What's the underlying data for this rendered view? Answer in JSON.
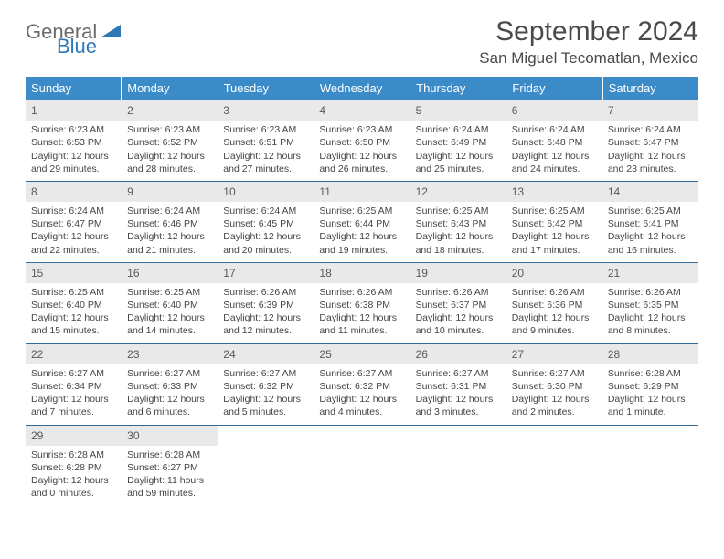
{
  "logo": {
    "word1": "General",
    "word2": "Blue",
    "color_gray": "#6b6b6b",
    "color_blue": "#2f78b7"
  },
  "title": "September 2024",
  "location": "San Miguel Tecomatlan, Mexico",
  "colors": {
    "header_bg": "#3b8bc9",
    "header_text": "#ffffff",
    "row_border": "#2f6a9a",
    "daynum_bg": "#e9e9e9",
    "body_text": "#444444"
  },
  "fonts": {
    "title_pt": 30,
    "location_pt": 17,
    "weekday_pt": 13,
    "daynum_pt": 12,
    "body_pt": 10.5
  },
  "weekdays": [
    "Sunday",
    "Monday",
    "Tuesday",
    "Wednesday",
    "Thursday",
    "Friday",
    "Saturday"
  ],
  "weeks": [
    [
      {
        "n": "1",
        "sr": "Sunrise: 6:23 AM",
        "ss": "Sunset: 6:53 PM",
        "d1": "Daylight: 12 hours",
        "d2": "and 29 minutes."
      },
      {
        "n": "2",
        "sr": "Sunrise: 6:23 AM",
        "ss": "Sunset: 6:52 PM",
        "d1": "Daylight: 12 hours",
        "d2": "and 28 minutes."
      },
      {
        "n": "3",
        "sr": "Sunrise: 6:23 AM",
        "ss": "Sunset: 6:51 PM",
        "d1": "Daylight: 12 hours",
        "d2": "and 27 minutes."
      },
      {
        "n": "4",
        "sr": "Sunrise: 6:23 AM",
        "ss": "Sunset: 6:50 PM",
        "d1": "Daylight: 12 hours",
        "d2": "and 26 minutes."
      },
      {
        "n": "5",
        "sr": "Sunrise: 6:24 AM",
        "ss": "Sunset: 6:49 PM",
        "d1": "Daylight: 12 hours",
        "d2": "and 25 minutes."
      },
      {
        "n": "6",
        "sr": "Sunrise: 6:24 AM",
        "ss": "Sunset: 6:48 PM",
        "d1": "Daylight: 12 hours",
        "d2": "and 24 minutes."
      },
      {
        "n": "7",
        "sr": "Sunrise: 6:24 AM",
        "ss": "Sunset: 6:47 PM",
        "d1": "Daylight: 12 hours",
        "d2": "and 23 minutes."
      }
    ],
    [
      {
        "n": "8",
        "sr": "Sunrise: 6:24 AM",
        "ss": "Sunset: 6:47 PM",
        "d1": "Daylight: 12 hours",
        "d2": "and 22 minutes."
      },
      {
        "n": "9",
        "sr": "Sunrise: 6:24 AM",
        "ss": "Sunset: 6:46 PM",
        "d1": "Daylight: 12 hours",
        "d2": "and 21 minutes."
      },
      {
        "n": "10",
        "sr": "Sunrise: 6:24 AM",
        "ss": "Sunset: 6:45 PM",
        "d1": "Daylight: 12 hours",
        "d2": "and 20 minutes."
      },
      {
        "n": "11",
        "sr": "Sunrise: 6:25 AM",
        "ss": "Sunset: 6:44 PM",
        "d1": "Daylight: 12 hours",
        "d2": "and 19 minutes."
      },
      {
        "n": "12",
        "sr": "Sunrise: 6:25 AM",
        "ss": "Sunset: 6:43 PM",
        "d1": "Daylight: 12 hours",
        "d2": "and 18 minutes."
      },
      {
        "n": "13",
        "sr": "Sunrise: 6:25 AM",
        "ss": "Sunset: 6:42 PM",
        "d1": "Daylight: 12 hours",
        "d2": "and 17 minutes."
      },
      {
        "n": "14",
        "sr": "Sunrise: 6:25 AM",
        "ss": "Sunset: 6:41 PM",
        "d1": "Daylight: 12 hours",
        "d2": "and 16 minutes."
      }
    ],
    [
      {
        "n": "15",
        "sr": "Sunrise: 6:25 AM",
        "ss": "Sunset: 6:40 PM",
        "d1": "Daylight: 12 hours",
        "d2": "and 15 minutes."
      },
      {
        "n": "16",
        "sr": "Sunrise: 6:25 AM",
        "ss": "Sunset: 6:40 PM",
        "d1": "Daylight: 12 hours",
        "d2": "and 14 minutes."
      },
      {
        "n": "17",
        "sr": "Sunrise: 6:26 AM",
        "ss": "Sunset: 6:39 PM",
        "d1": "Daylight: 12 hours",
        "d2": "and 12 minutes."
      },
      {
        "n": "18",
        "sr": "Sunrise: 6:26 AM",
        "ss": "Sunset: 6:38 PM",
        "d1": "Daylight: 12 hours",
        "d2": "and 11 minutes."
      },
      {
        "n": "19",
        "sr": "Sunrise: 6:26 AM",
        "ss": "Sunset: 6:37 PM",
        "d1": "Daylight: 12 hours",
        "d2": "and 10 minutes."
      },
      {
        "n": "20",
        "sr": "Sunrise: 6:26 AM",
        "ss": "Sunset: 6:36 PM",
        "d1": "Daylight: 12 hours",
        "d2": "and 9 minutes."
      },
      {
        "n": "21",
        "sr": "Sunrise: 6:26 AM",
        "ss": "Sunset: 6:35 PM",
        "d1": "Daylight: 12 hours",
        "d2": "and 8 minutes."
      }
    ],
    [
      {
        "n": "22",
        "sr": "Sunrise: 6:27 AM",
        "ss": "Sunset: 6:34 PM",
        "d1": "Daylight: 12 hours",
        "d2": "and 7 minutes."
      },
      {
        "n": "23",
        "sr": "Sunrise: 6:27 AM",
        "ss": "Sunset: 6:33 PM",
        "d1": "Daylight: 12 hours",
        "d2": "and 6 minutes."
      },
      {
        "n": "24",
        "sr": "Sunrise: 6:27 AM",
        "ss": "Sunset: 6:32 PM",
        "d1": "Daylight: 12 hours",
        "d2": "and 5 minutes."
      },
      {
        "n": "25",
        "sr": "Sunrise: 6:27 AM",
        "ss": "Sunset: 6:32 PM",
        "d1": "Daylight: 12 hours",
        "d2": "and 4 minutes."
      },
      {
        "n": "26",
        "sr": "Sunrise: 6:27 AM",
        "ss": "Sunset: 6:31 PM",
        "d1": "Daylight: 12 hours",
        "d2": "and 3 minutes."
      },
      {
        "n": "27",
        "sr": "Sunrise: 6:27 AM",
        "ss": "Sunset: 6:30 PM",
        "d1": "Daylight: 12 hours",
        "d2": "and 2 minutes."
      },
      {
        "n": "28",
        "sr": "Sunrise: 6:28 AM",
        "ss": "Sunset: 6:29 PM",
        "d1": "Daylight: 12 hours",
        "d2": "and 1 minute."
      }
    ],
    [
      {
        "n": "29",
        "sr": "Sunrise: 6:28 AM",
        "ss": "Sunset: 6:28 PM",
        "d1": "Daylight: 12 hours",
        "d2": "and 0 minutes."
      },
      {
        "n": "30",
        "sr": "Sunrise: 6:28 AM",
        "ss": "Sunset: 6:27 PM",
        "d1": "Daylight: 11 hours",
        "d2": "and 59 minutes."
      },
      {
        "empty": true
      },
      {
        "empty": true
      },
      {
        "empty": true
      },
      {
        "empty": true
      },
      {
        "empty": true
      }
    ]
  ]
}
